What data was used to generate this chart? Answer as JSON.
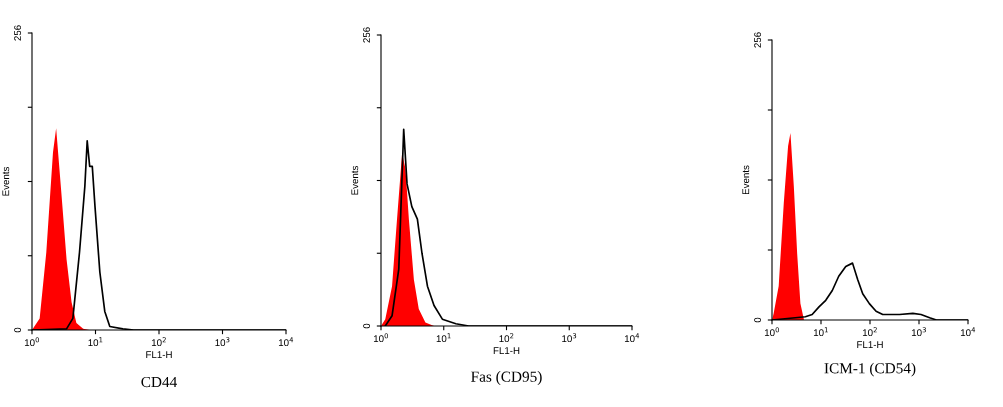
{
  "chart_data": [
    {
      "type": "line",
      "title": "CD44",
      "xlabel": "FL1-H",
      "ylabel": "Events",
      "log": "x",
      "grid": false,
      "legend": false,
      "xlim": [
        1,
        10000
      ],
      "ylim": [
        0,
        256
      ],
      "xticks": [
        {
          "value": 1,
          "label": "10$^{0}$"
        },
        {
          "value": 10,
          "label": "10$^{1}$"
        },
        {
          "value": 100,
          "label": "10$^{2}$"
        },
        {
          "value": 1000,
          "label": "10$^{3}$"
        },
        {
          "value": 10000,
          "label": "10$^{4}$"
        }
      ],
      "yticks": [
        0,
        {
          "value": 64,
          "label": null
        },
        {
          "value": 128,
          "label": null
        },
        {
          "value": 192,
          "label": null
        },
        256
      ],
      "series": [
        {
          "type": "area",
          "color": "#ff0000",
          "x": [
            1.0,
            1.32,
            1.68,
            2.14,
            2.4,
            2.9,
            3.5,
            4.2,
            5.0,
            6.4,
            8.0
          ],
          "values": [
            0,
            10,
            67,
            153,
            174,
            118,
            61,
            24,
            6,
            1,
            0
          ]
        },
        {
          "color": "#000000",
          "x": [
            1.0,
            3.5,
            4.4,
            5.6,
            6.8,
            7.4,
            8.1,
            8.9,
            9.8,
            11.7,
            14.0,
            16.8,
            27,
            40,
            10000
          ],
          "values": [
            0,
            1,
            10,
            67,
            124,
            163,
            141,
            141,
            107,
            50,
            16,
            3,
            1,
            0,
            0
          ]
        }
      ]
    },
    {
      "type": "line",
      "title": "Fas (CD95)",
      "xlabel": "FL1-H",
      "ylabel": "Events",
      "log": "x",
      "grid": false,
      "legend": false,
      "xlim": [
        1,
        10000
      ],
      "ylim": [
        0,
        256
      ],
      "xticks": [
        {
          "value": 1,
          "label": "10$^{0}$"
        },
        {
          "value": 10,
          "label": "10$^{1}$"
        },
        {
          "value": 100,
          "label": "10$^{2}$"
        },
        {
          "value": 1000,
          "label": "10$^{3}$"
        },
        {
          "value": 10000,
          "label": "10$^{4}$"
        }
      ],
      "yticks": [
        0,
        {
          "value": 64,
          "label": null
        },
        {
          "value": 128,
          "label": null
        },
        {
          "value": 192,
          "label": null
        },
        256
      ],
      "series": [
        {
          "type": "area",
          "color": "#ff0000",
          "x": [
            1.0,
            1.17,
            1.5,
            1.8,
            2.17,
            2.46,
            2.78,
            3.34,
            4.0,
            5.1,
            7.0
          ],
          "values": [
            0,
            6,
            35,
            94,
            152,
            138,
            94,
            41,
            15,
            3,
            0
          ]
        },
        {
          "color": "#000000",
          "x": [
            1.17,
            1.5,
            1.92,
            2.3,
            2.6,
            3.1,
            3.8,
            4.5,
            5.5,
            7.0,
            9.5,
            15.6,
            25,
            10000
          ],
          "values": [
            0,
            9,
            50,
            173,
            125,
            105,
            94,
            64,
            35,
            18,
            6,
            2,
            0,
            0
          ]
        }
      ]
    },
    {
      "type": "line",
      "title": "ICM-1 (CD54)",
      "xlabel": "FL1-H",
      "ylabel": "Events",
      "log": "x",
      "grid": false,
      "legend": false,
      "xlim": [
        1,
        10000
      ],
      "ylim": [
        0,
        256
      ],
      "xticks": [
        {
          "value": 1,
          "label": "10$^{0}$"
        },
        {
          "value": 10,
          "label": "10$^{1}$"
        },
        {
          "value": 100,
          "label": "10$^{2}$"
        },
        {
          "value": 1000,
          "label": "10$^{3}$"
        },
        {
          "value": 10000,
          "label": "10$^{4}$"
        }
      ],
      "yticks": [
        0,
        {
          "value": 64,
          "label": null
        },
        {
          "value": 128,
          "label": null
        },
        {
          "value": 192,
          "label": null
        },
        256
      ],
      "series": [
        {
          "type": "area",
          "color": "#ff0000",
          "x": [
            1.0,
            1.08,
            1.37,
            1.74,
            2.13,
            2.38,
            2.79,
            3.26,
            3.8,
            4.5
          ],
          "values": [
            0,
            6,
            31,
            107,
            159,
            171,
            122,
            61,
            15,
            0
          ]
        },
        {
          "color": "#000000",
          "x": [
            1.0,
            4.8,
            6.6,
            9.1,
            12.5,
            17,
            23,
            32,
            44,
            56,
            71,
            97,
            133,
            182,
            400,
            750,
            1100,
            1650,
            2270,
            10000
          ],
          "values": [
            0,
            3,
            5,
            12,
            18,
            27,
            40,
            49,
            52,
            37,
            24,
            15,
            8,
            5,
            5,
            6,
            5,
            2,
            0,
            0
          ]
        }
      ]
    }
  ]
}
